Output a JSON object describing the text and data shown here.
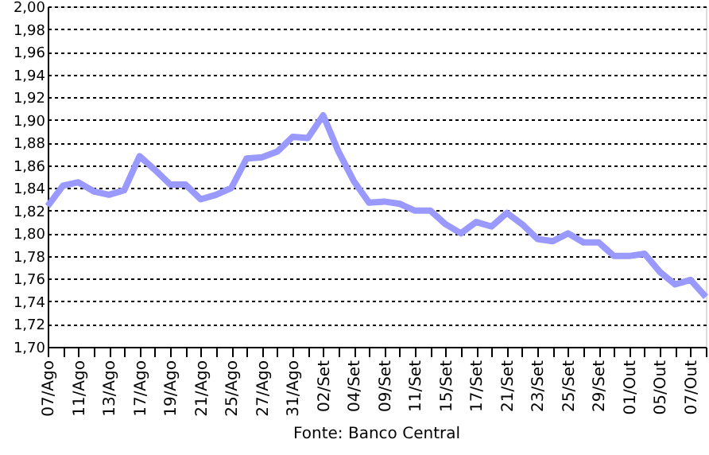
{
  "chart_data": {
    "type": "line",
    "categories": [
      "07/Ago",
      null,
      "11/Ago",
      null,
      "13/Ago",
      null,
      "17/Ago",
      null,
      "19/Ago",
      null,
      "21/Ago",
      null,
      "25/Ago",
      null,
      "27/Ago",
      null,
      "31/Ago",
      null,
      "02/Set",
      null,
      "04/Set",
      null,
      "09/Set",
      null,
      "11/Set",
      null,
      "15/Set",
      null,
      "17/Set",
      null,
      "21/Set",
      null,
      "23/Set",
      null,
      "25/Set",
      null,
      "29/Set",
      null,
      "01/Out",
      null,
      "05/Out",
      null,
      "07/Out",
      null
    ],
    "series": [
      {
        "color": "#9999ff",
        "values": [
          1.824,
          1.842,
          1.845,
          1.837,
          1.834,
          1.838,
          1.868,
          1.856,
          1.843,
          1.843,
          1.83,
          1.834,
          1.84,
          1.866,
          1.867,
          1.872,
          1.885,
          1.884,
          1.904,
          1.872,
          1.846,
          1.827,
          1.828,
          1.826,
          1.82,
          1.82,
          1.808,
          1.8,
          1.81,
          1.806,
          1.818,
          1.808,
          1.795,
          1.793,
          1.8,
          1.792,
          1.792,
          1.78,
          1.78,
          1.782,
          1.766,
          1.755,
          1.759,
          1.744
        ]
      }
    ],
    "ylim": [
      1.7,
      2.0
    ],
    "yticks": [
      {
        "value": 1.7,
        "label": "1,70"
      },
      {
        "value": 1.72,
        "label": "1,72"
      },
      {
        "value": 1.74,
        "label": "1,74"
      },
      {
        "value": 1.76,
        "label": "1,76"
      },
      {
        "value": 1.78,
        "label": "1,78"
      },
      {
        "value": 1.8,
        "label": "1,80"
      },
      {
        "value": 1.82,
        "label": "1,82"
      },
      {
        "value": 1.84,
        "label": "1,84"
      },
      {
        "value": 1.86,
        "label": "1,86"
      },
      {
        "value": 1.88,
        "label": "1,88"
      },
      {
        "value": 1.9,
        "label": "1,90"
      },
      {
        "value": 1.92,
        "label": "1,92"
      },
      {
        "value": 1.94,
        "label": "1,94"
      },
      {
        "value": 1.96,
        "label": "1,96"
      },
      {
        "value": 1.98,
        "label": "1,98"
      },
      {
        "value": 2.0,
        "label": "2,00"
      }
    ],
    "grid": "y",
    "marker": "none",
    "line_style": "solid",
    "annotations": [
      "Fonte: Banco Central"
    ]
  }
}
